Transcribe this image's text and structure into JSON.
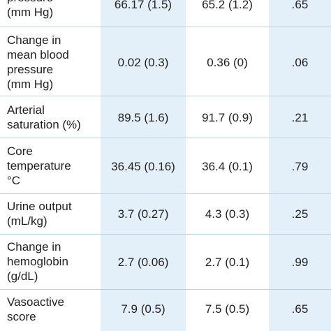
{
  "table": {
    "rows": [
      {
        "label": "pressure\n(mm Hg)",
        "group1": "66.17 (1.5)",
        "group2": "65.2 (1.2)",
        "p": ".65"
      },
      {
        "label": "Change in\nmean blood\npressure\n(mm Hg)",
        "group1": "0.02 (0.3)",
        "group2": "0.36 (0)",
        "p": ".06"
      },
      {
        "label": "Arterial\nsaturation (%)",
        "group1": "89.5 (1.6)",
        "group2": "91.7 (0.9)",
        "p": ".21"
      },
      {
        "label": "Core\ntemperature\n°C",
        "group1": "36.45 (0.16)",
        "group2": "36.4 (0.1)",
        "p": ".79"
      },
      {
        "label": "Urine output\n(mL/kg)",
        "group1": "3.7 (0.27)",
        "group2": "4.3 (0.3)",
        "p": ".25"
      },
      {
        "label": "Change in\nhemoglobin\n(g/dL)",
        "group1": "2.7 (0.06)",
        "group2": "2.7 (0.1)",
        "p": ".99"
      },
      {
        "label": "Vasoactive\nscore",
        "group1": "7.9 (0.5)",
        "group2": "7.5 (0.5)",
        "p": ".65"
      }
    ]
  },
  "colors": {
    "shade": "#e3f0fa",
    "rule": "#b8d2e6",
    "text": "#231f20"
  }
}
